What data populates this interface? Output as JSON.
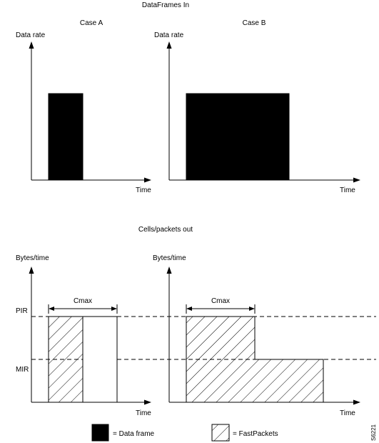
{
  "top": {
    "heading": "DataFrames In",
    "case_a": "Case A",
    "case_b": "Case B",
    "y_label": "Data rate",
    "x_label": "Time"
  },
  "bottom": {
    "heading": "Cells/packets out",
    "y_label": "Bytes/time",
    "x_label": "Time",
    "pir": "PIR",
    "mir": "MIR",
    "cmax": "Cmax"
  },
  "legend": {
    "data_frame": "= Data frame",
    "fastpackets": "= FastPackets"
  },
  "figure_id": "S6221"
}
